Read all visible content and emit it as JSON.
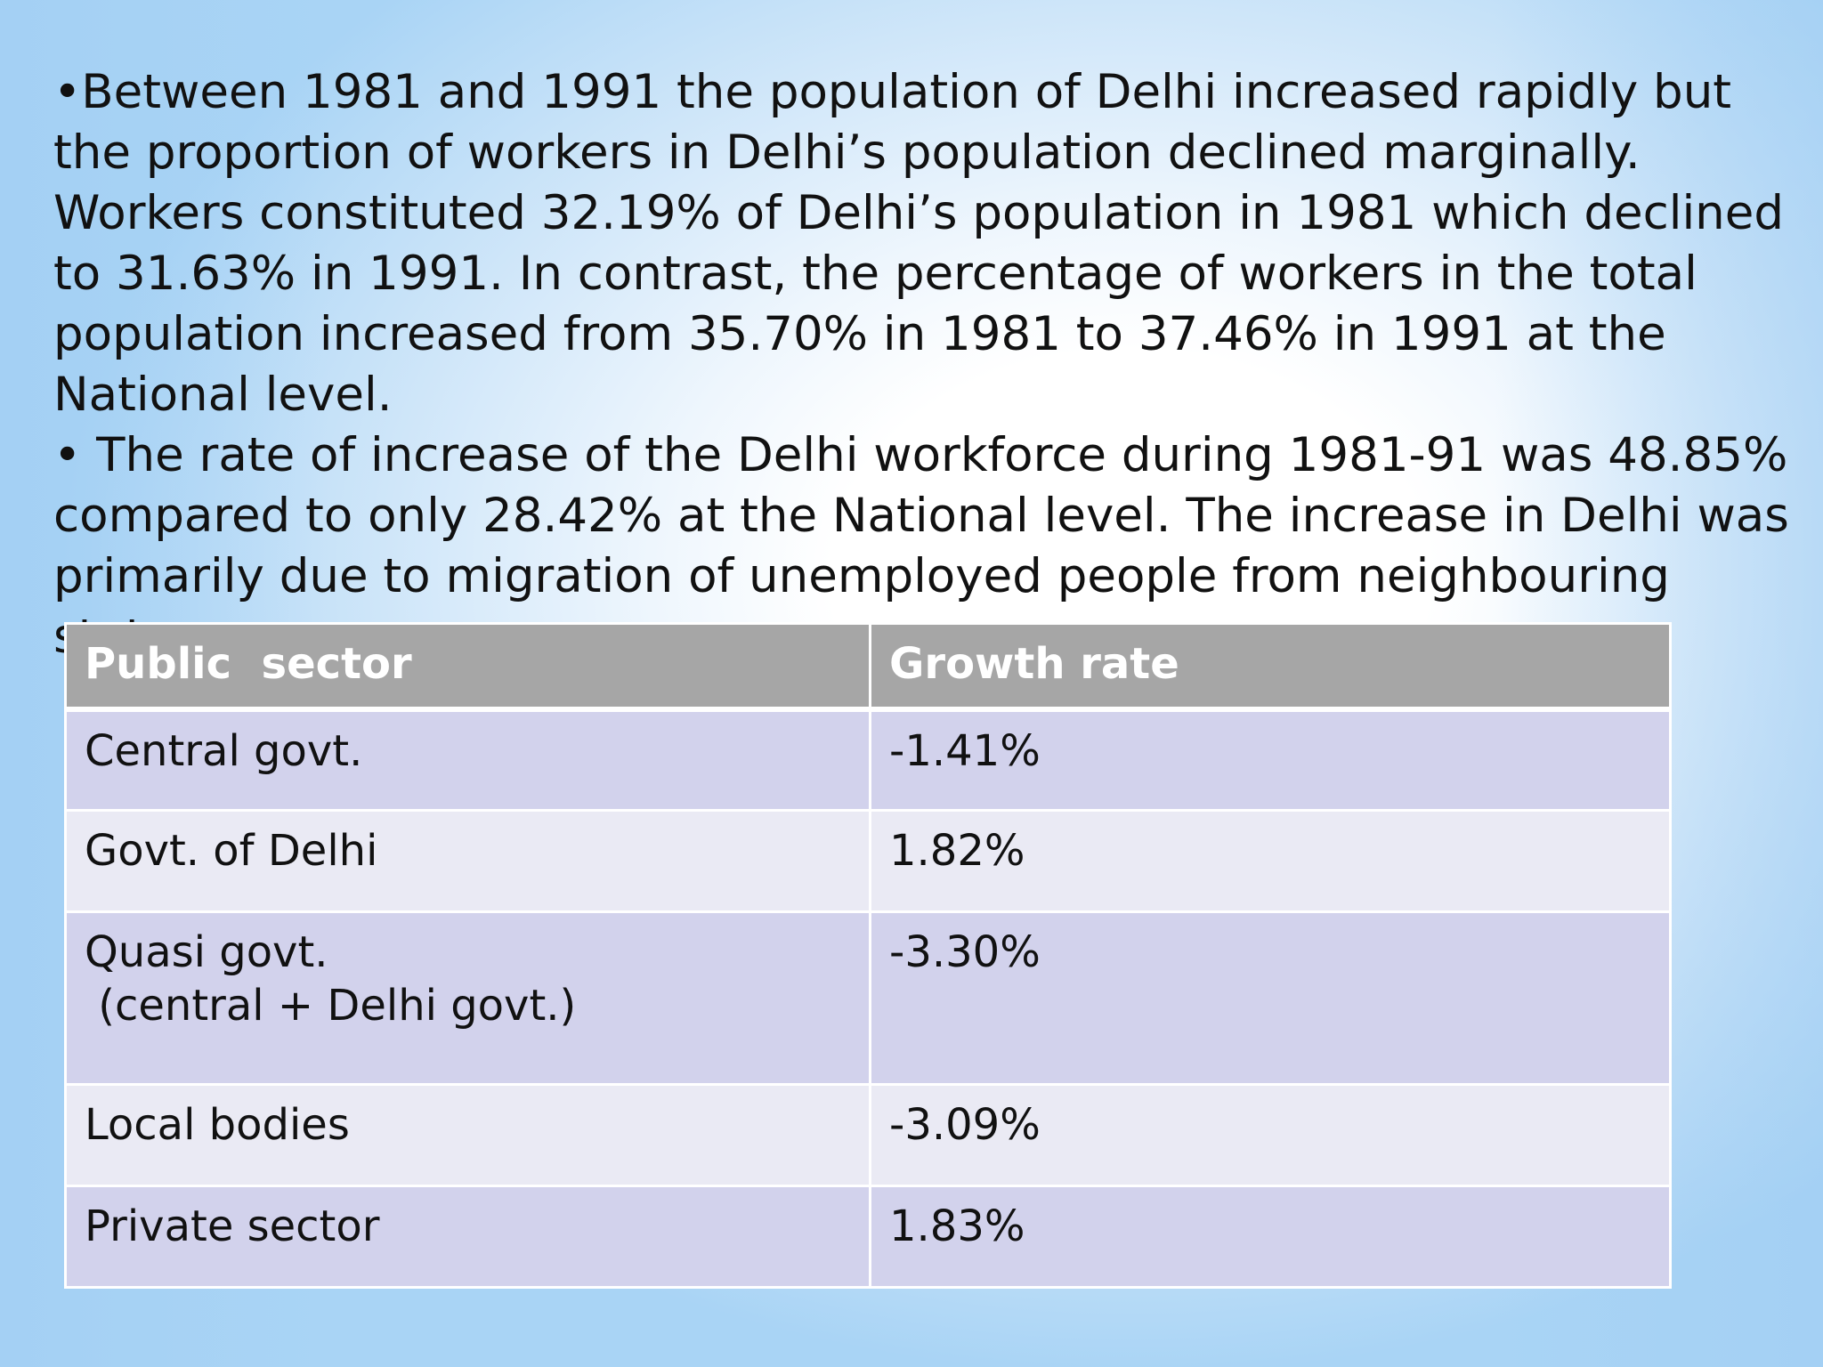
{
  "slide": {
    "paragraphs": [
      "•Between 1981 and 1991 the population of Delhi increased rapidly but the proportion of workers in Delhi’s population declined marginally. Workers constituted 32.19% of Delhi’s population in 1981 which declined to 31.63% in 1991. In contrast, the percentage of workers in the total population increased from 35.70% in 1981 to 37.46% in 1991 at the National level.",
      "• The rate of increase of the Delhi workforce during 1981-91 was 48.85% compared to only 28.42% at the National level. The increase in Delhi was primarily due to migration of unemployed people from neighbouring states."
    ]
  },
  "table": {
    "headers": [
      "Public  sector",
      "Growth rate"
    ],
    "rows": [
      {
        "sector": [
          "Central govt."
        ],
        "growth": "-1.41%"
      },
      {
        "sector": [
          "Govt. of Delhi"
        ],
        "growth": "1.82%"
      },
      {
        "sector": [
          "Quasi govt.",
          " (central + Delhi govt.)"
        ],
        "growth": "-3.30%"
      },
      {
        "sector": [
          "Local bodies"
        ],
        "growth": "-3.09%"
      },
      {
        "sector": [
          "Private sector"
        ],
        "growth": "1.83%"
      }
    ]
  },
  "colors": {
    "header_bg": "#a6a6a6",
    "row_dark": "#d2d2ec",
    "row_light": "#eaeaf4",
    "background_edge": "#a9d4f5"
  }
}
